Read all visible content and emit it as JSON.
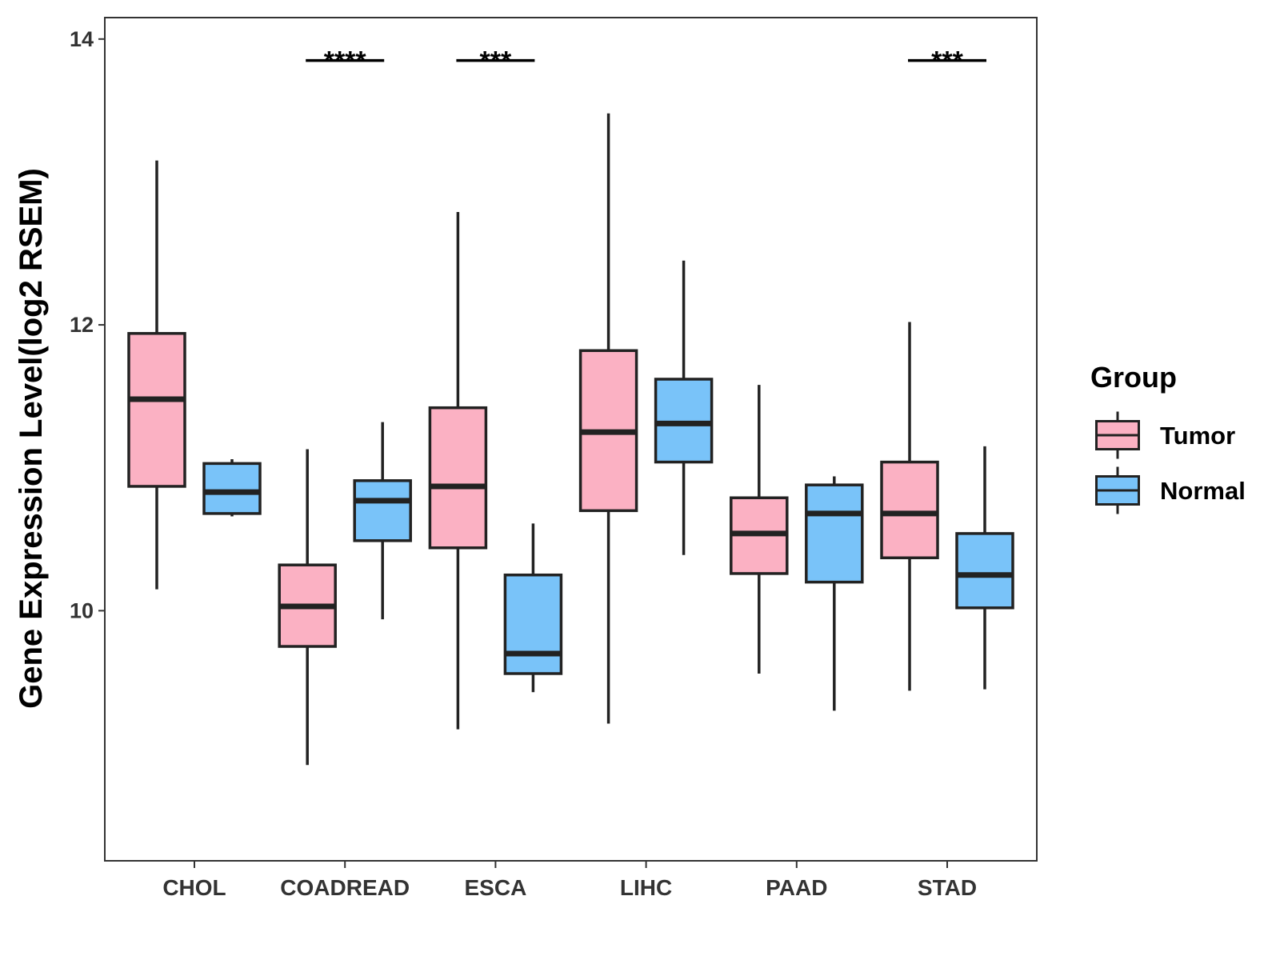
{
  "chart_data": {
    "type": "boxplot",
    "title": "",
    "xlabel": "",
    "ylabel": "Gene Expression Level(log2 RSEM)",
    "ylim": [
      8.25,
      14.15
    ],
    "yticks": [
      10,
      12,
      14
    ],
    "yticks_labels": [
      "10",
      "12",
      "14"
    ],
    "categories": [
      "CHOL",
      "COADREAD",
      "ESCA",
      "LIHC",
      "PAAD",
      "STAD"
    ],
    "legend": {
      "title": "Group",
      "position": "right",
      "entries": [
        "Tumor",
        "Normal"
      ]
    },
    "series": [
      {
        "name": "Tumor",
        "color": "#FBB1C3",
        "boxes": [
          {
            "lower_whisker": 10.15,
            "q1": 10.87,
            "median": 11.48,
            "q3": 11.94,
            "upper_whisker": 13.15
          },
          {
            "lower_whisker": 8.92,
            "q1": 9.75,
            "median": 10.03,
            "q3": 10.32,
            "upper_whisker": 11.13
          },
          {
            "lower_whisker": 9.17,
            "q1": 10.44,
            "median": 10.87,
            "q3": 11.42,
            "upper_whisker": 12.79
          },
          {
            "lower_whisker": 9.21,
            "q1": 10.7,
            "median": 11.25,
            "q3": 11.82,
            "upper_whisker": 13.48
          },
          {
            "lower_whisker": 9.56,
            "q1": 10.26,
            "median": 10.54,
            "q3": 10.79,
            "upper_whisker": 11.58
          },
          {
            "lower_whisker": 9.44,
            "q1": 10.37,
            "median": 10.68,
            "q3": 11.04,
            "upper_whisker": 12.02
          }
        ]
      },
      {
        "name": "Normal",
        "color": "#79C3F9",
        "boxes": [
          {
            "lower_whisker": 10.66,
            "q1": 10.68,
            "median": 10.83,
            "q3": 11.03,
            "upper_whisker": 11.06
          },
          {
            "lower_whisker": 9.94,
            "q1": 10.49,
            "median": 10.77,
            "q3": 10.91,
            "upper_whisker": 11.32
          },
          {
            "lower_whisker": 9.43,
            "q1": 9.56,
            "median": 9.7,
            "q3": 10.25,
            "upper_whisker": 10.61
          },
          {
            "lower_whisker": 10.39,
            "q1": 11.04,
            "median": 11.31,
            "q3": 11.62,
            "upper_whisker": 12.45
          },
          {
            "lower_whisker": 9.3,
            "q1": 10.2,
            "median": 10.68,
            "q3": 10.88,
            "upper_whisker": 10.94
          },
          {
            "lower_whisker": 9.45,
            "q1": 10.02,
            "median": 10.25,
            "q3": 10.54,
            "upper_whisker": 11.15
          }
        ]
      }
    ],
    "significance": [
      {
        "category": "COADREAD",
        "label": "****",
        "y": 13.85
      },
      {
        "category": "ESCA",
        "label": "***",
        "y": 13.85
      },
      {
        "category": "STAD",
        "label": "***",
        "y": 13.85
      }
    ],
    "grid": false
  }
}
